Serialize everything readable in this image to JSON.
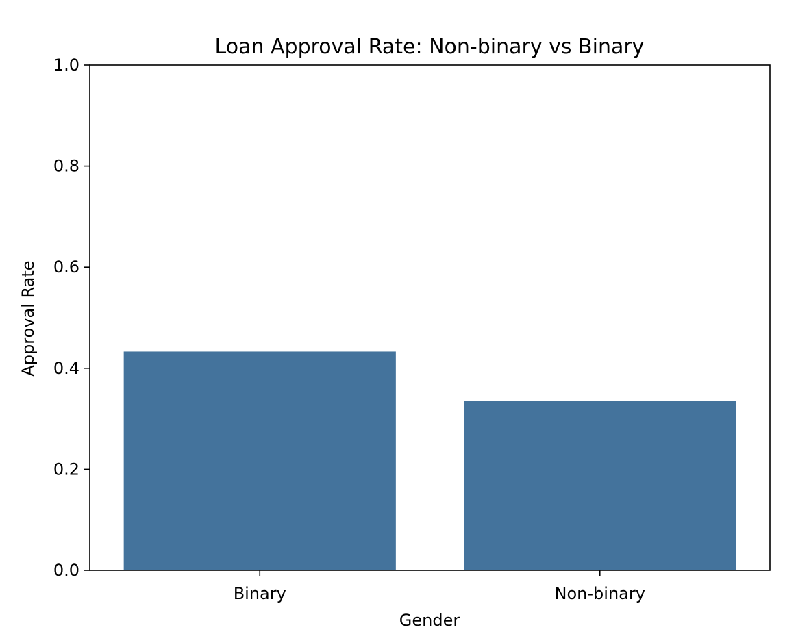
{
  "chart_data": {
    "type": "bar",
    "title": "Loan Approval Rate: Non-binary vs Binary",
    "xlabel": "Gender",
    "ylabel": "Approval Rate",
    "categories": [
      "Binary",
      "Non-binary"
    ],
    "values": [
      0.433,
      0.335
    ],
    "ylim": [
      0,
      1.0
    ],
    "yticks": [
      "0.0",
      "0.2",
      "0.4",
      "0.6",
      "0.8",
      "1.0"
    ],
    "grid": false,
    "legend": "none",
    "bar_color": "#44739c"
  }
}
